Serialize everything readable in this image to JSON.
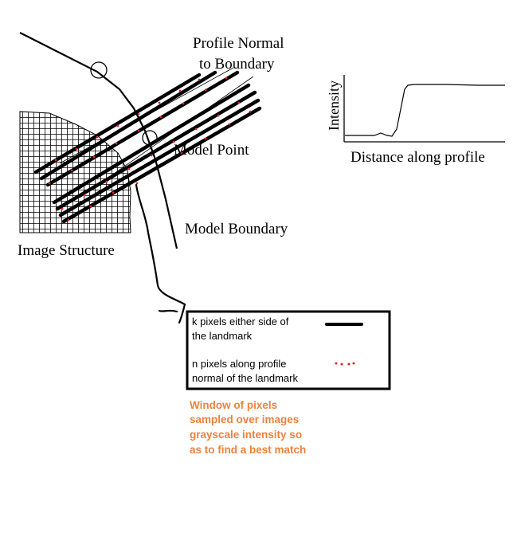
{
  "labels": {
    "profile_normal_line1": "Profile Normal",
    "profile_normal_line2": "to Boundary",
    "model_point": "Model Point",
    "model_boundary": "Model Boundary",
    "image_structure": "Image Structure"
  },
  "intensity_plot": {
    "ylabel": "Intensity",
    "xlabel": "Distance along profile"
  },
  "legend": {
    "item1_line1": "k pixels either side of",
    "item1_line2": "the landmark",
    "item2_line1": "n pixels along profile",
    "item2_line2": "normal of the landmark"
  },
  "note": {
    "line1": "Window of pixels",
    "line2": "sampled over images",
    "line3": "grayscale intensity so",
    "line4": "as to find a best match"
  },
  "colors": {
    "ink": "#000000",
    "sample_dot": "#e0202a",
    "note": "#f0813a"
  }
}
